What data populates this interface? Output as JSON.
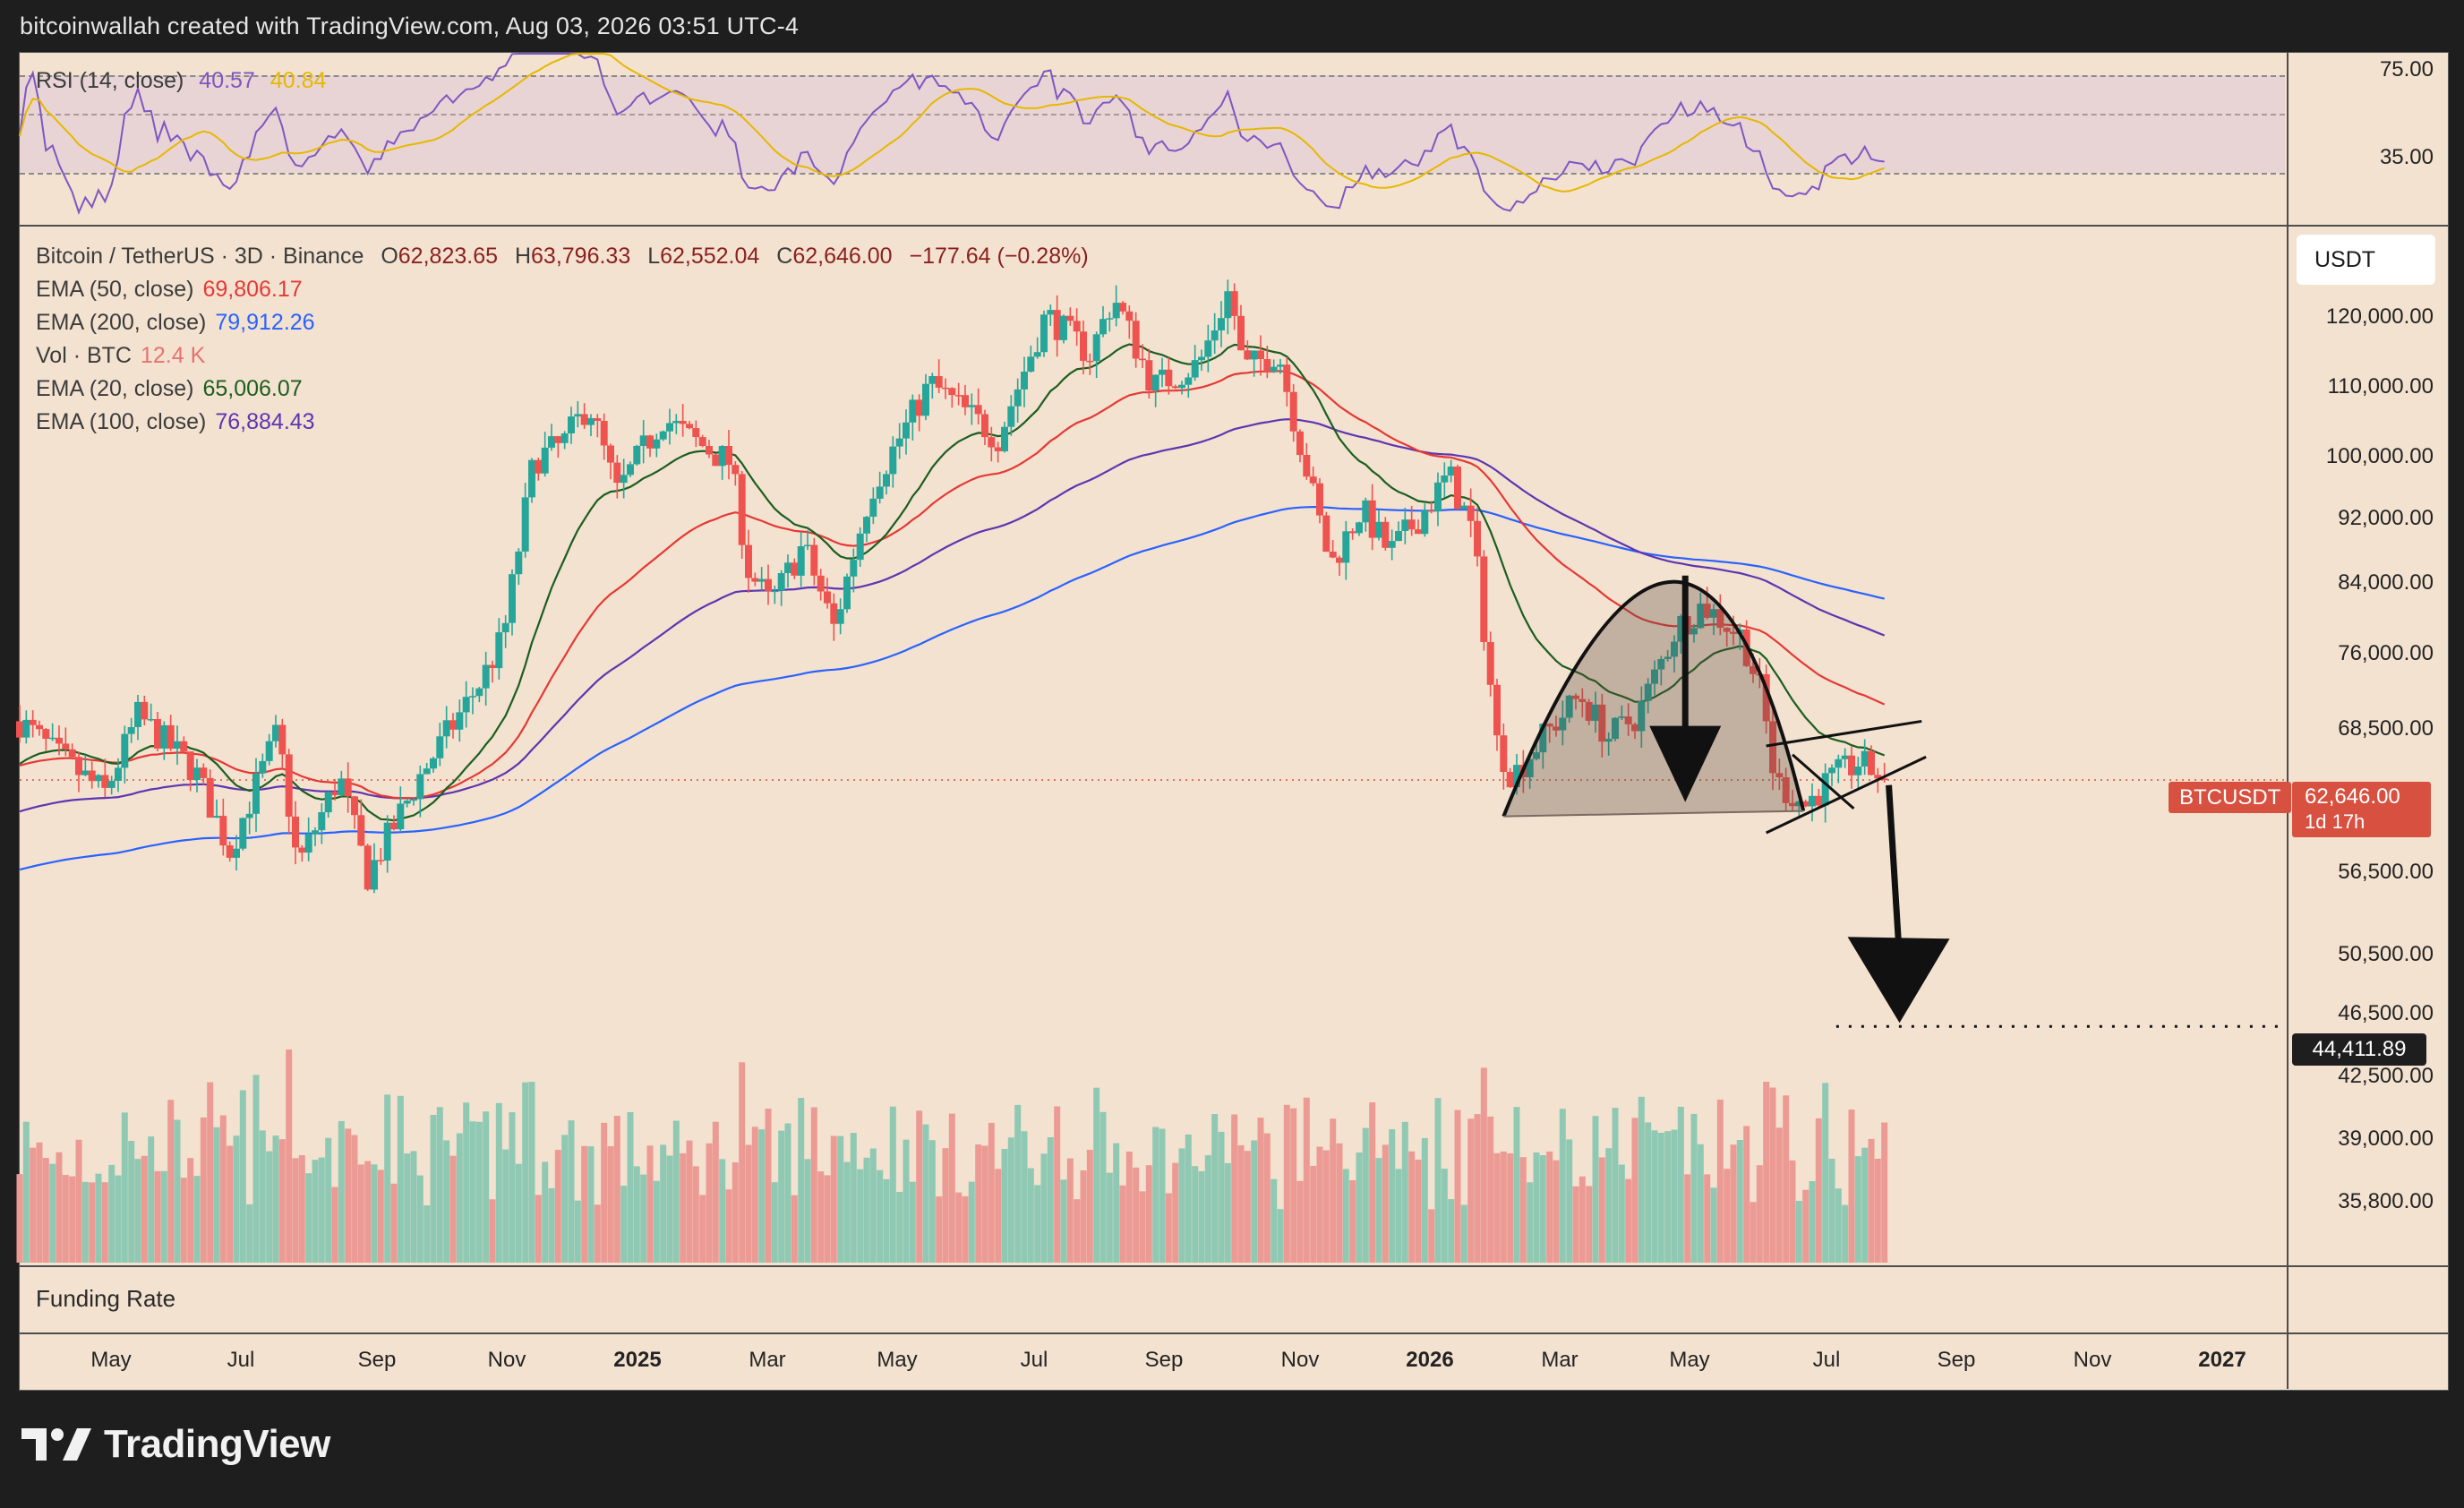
{
  "header": {
    "credit": "bitcoinwallah created with TradingView.com, Aug 03, 2026 03:51 UTC-4"
  },
  "rsi": {
    "label": "RSI (14, close)",
    "value": "40.57",
    "ma_value": "40.84",
    "ticks": [
      "75.00",
      "35.00"
    ],
    "colors": {
      "line": "#7e57c2",
      "ma": "#e6b800",
      "band": "#e8d4d4"
    }
  },
  "main": {
    "title": "Bitcoin / TetherUS · 3D · Binance",
    "ohlc": {
      "o_label": "O",
      "o": "62,823.65",
      "h_label": "H",
      "h": "63,796.33",
      "l_label": "L",
      "l": "62,552.04",
      "c_label": "C",
      "c": "62,646.00",
      "change": "−177.64 (−0.28%)"
    },
    "indicators": [
      {
        "name": "EMA (50, close)",
        "value": "69,806.17",
        "color": "#e53935"
      },
      {
        "name": "EMA (200, close)",
        "value": "79,912.26",
        "color": "#2962ff"
      },
      {
        "name": "Vol · BTC",
        "value": "12.4 K",
        "color": "#e57373"
      },
      {
        "name": "EMA (20, close)",
        "value": "65,006.07",
        "color": "#1b5e20"
      },
      {
        "name": "EMA (100, close)",
        "value": "76,884.43",
        "color": "#5e35b1"
      }
    ],
    "currency": "USDT",
    "symbol_tag": "BTCUSDT",
    "price_tag": "62,646.00",
    "countdown": "1d 17h",
    "target_tag": "44,411.89",
    "price_ticks": [
      "120,000.00",
      "110,000.00",
      "100,000.00",
      "92,000.00",
      "84,000.00",
      "76,000.00",
      "68,500.00",
      "56,500.00",
      "50,500.00",
      "46,500.00",
      "42,500.00",
      "39,000.00",
      "35,800.00"
    ]
  },
  "funding": {
    "label": "Funding Rate"
  },
  "x_axis": {
    "labels": [
      {
        "t": "May",
        "bold": false
      },
      {
        "t": "Jul",
        "bold": false
      },
      {
        "t": "Sep",
        "bold": false
      },
      {
        "t": "Nov",
        "bold": false
      },
      {
        "t": "2025",
        "bold": true
      },
      {
        "t": "Mar",
        "bold": false
      },
      {
        "t": "May",
        "bold": false
      },
      {
        "t": "Jul",
        "bold": false
      },
      {
        "t": "Sep",
        "bold": false
      },
      {
        "t": "Nov",
        "bold": false
      },
      {
        "t": "2026",
        "bold": true
      },
      {
        "t": "Mar",
        "bold": false
      },
      {
        "t": "May",
        "bold": false
      },
      {
        "t": "Jul",
        "bold": false
      },
      {
        "t": "Sep",
        "bold": false
      },
      {
        "t": "Nov",
        "bold": false
      },
      {
        "t": "2027",
        "bold": true
      }
    ]
  },
  "brand": {
    "name": "TradingView"
  },
  "chart_data": {
    "type": "candlestick",
    "timeframe": "3D",
    "y_scale": "log",
    "ylim": [
      33000,
      131000
    ],
    "x_range": [
      "2024-04-01",
      "2027-01-31"
    ],
    "last_price": 62646.0,
    "target_price": 44411.89,
    "colors": {
      "up": "#26a69a",
      "down": "#ef5350",
      "vol_up": "#8fc9b3",
      "vol_down": "#ec9a94"
    },
    "price_anchors": [
      [
        "2024-04-01",
        68000
      ],
      [
        "2024-04-20",
        64500
      ],
      [
        "2024-05-10",
        61500
      ],
      [
        "2024-05-25",
        68500
      ],
      [
        "2024-06-20",
        63500
      ],
      [
        "2024-07-06",
        56800
      ],
      [
        "2024-07-28",
        67000
      ],
      [
        "2024-08-06",
        55500
      ],
      [
        "2024-08-25",
        63000
      ],
      [
        "2024-09-07",
        54800
      ],
      [
        "2024-10-01",
        63000
      ],
      [
        "2024-10-29",
        72000
      ],
      [
        "2024-11-08",
        76500
      ],
      [
        "2024-11-22",
        98000
      ],
      [
        "2024-12-05",
        100000
      ],
      [
        "2024-12-17",
        106000
      ],
      [
        "2024-12-30",
        93500
      ],
      [
        "2025-01-20",
        104000
      ],
      [
        "2025-02-01",
        101000
      ],
      [
        "2025-02-20",
        97500
      ],
      [
        "2025-02-28",
        84000
      ],
      [
        "2025-03-10",
        80000
      ],
      [
        "2025-03-25",
        87000
      ],
      [
        "2025-04-08",
        77500
      ],
      [
        "2025-04-25",
        94000
      ],
      [
        "2025-05-22",
        109000
      ],
      [
        "2025-06-22",
        101000
      ],
      [
        "2025-07-14",
        120000
      ],
      [
        "2025-08-03",
        113500
      ],
      [
        "2025-08-14",
        123000
      ],
      [
        "2025-09-01",
        108500
      ],
      [
        "2025-09-22",
        112000
      ],
      [
        "2025-10-06",
        124500
      ],
      [
        "2025-10-12",
        111000
      ],
      [
        "2025-10-28",
        114000
      ],
      [
        "2025-11-04",
        104000
      ],
      [
        "2025-11-21",
        84500
      ],
      [
        "2025-12-05",
        91500
      ],
      [
        "2025-12-18",
        86000
      ],
      [
        "2026-01-05",
        92000
      ],
      [
        "2026-01-14",
        96000
      ],
      [
        "2026-01-25",
        88500
      ],
      [
        "2026-02-05",
        66000
      ],
      [
        "2026-02-12",
        63000
      ],
      [
        "2026-02-26",
        66500
      ],
      [
        "2026-03-15",
        70500
      ],
      [
        "2026-03-28",
        66500
      ],
      [
        "2026-04-10",
        68500
      ],
      [
        "2026-04-28",
        77500
      ],
      [
        "2026-05-10",
        80000
      ],
      [
        "2026-05-28",
        76500
      ],
      [
        "2026-06-06",
        70500
      ],
      [
        "2026-06-12",
        62500
      ],
      [
        "2026-06-26",
        60500
      ],
      [
        "2026-07-06",
        62500
      ],
      [
        "2026-07-20",
        64200
      ],
      [
        "2026-08-03",
        62646
      ]
    ]
  }
}
